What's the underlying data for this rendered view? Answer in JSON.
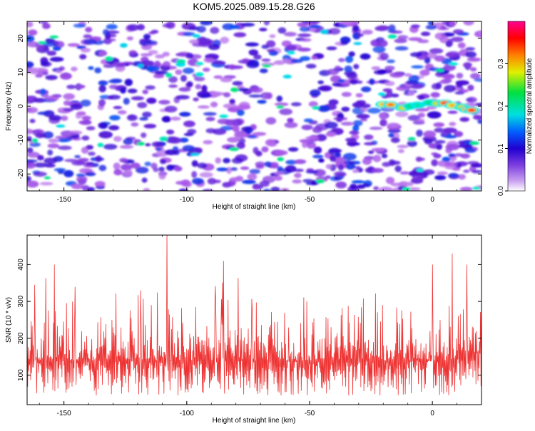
{
  "title": "KOM5.2025.089.15.28.G26",
  "colors": {
    "line": "#ee3333",
    "axis": "#000000",
    "background": "#ffffff"
  },
  "chart_data": [
    {
      "type": "heatmap",
      "xlabel": "Height of straight line (km)",
      "ylabel": "Frequency (Hz)",
      "xlim": [
        -165,
        20
      ],
      "ylim": [
        -25,
        25
      ],
      "xticks": [
        -150,
        -100,
        -50,
        0
      ],
      "xtick_labels": [
        "-150",
        "-100",
        "-50",
        "0"
      ],
      "yticks": [
        -20,
        -10,
        0,
        10,
        20
      ],
      "ytick_labels": [
        "-20",
        "-10",
        "0",
        "10",
        "20"
      ],
      "colorbar": {
        "label": "Normalized spectral amplitude",
        "range": [
          0,
          0.4
        ],
        "ticks": [
          0.0,
          0.1,
          0.2,
          0.3
        ],
        "tick_labels": [
          "0.0",
          "0.1",
          "0.2",
          "0.3"
        ],
        "colormap": [
          "#ffffff",
          "#a855e8",
          "#3000d0",
          "#0070ff",
          "#00e8e8",
          "#00e040",
          "#f0f000",
          "#ff8000",
          "#ff0000",
          "#ff0088"
        ]
      },
      "features": [
        {
          "desc_value": "strong signal near 0 Hz",
          "x_range": [
            -22,
            18
          ],
          "y": 0,
          "amplitude": 0.35
        }
      ]
    },
    {
      "type": "line",
      "xlabel": "Height of straight line (km)",
      "ylabel": "SNR (10 * v/v)",
      "xlim": [
        -165,
        20
      ],
      "ylim": [
        20,
        480
      ],
      "xticks": [
        -150,
        -100,
        -50,
        0
      ],
      "xtick_labels": [
        "-150",
        "-100",
        "-50",
        "0"
      ],
      "yticks": [
        100,
        200,
        300,
        400
      ],
      "ytick_labels": [
        "100",
        "200",
        "300",
        "400"
      ],
      "series_stats": {
        "min": 25,
        "typical": 140,
        "max": 480
      },
      "peaks": [
        {
          "x": -162,
          "y": 345
        },
        {
          "x": -154,
          "y": 400
        },
        {
          "x": -108,
          "y": 480
        },
        {
          "x": -85,
          "y": 410
        },
        {
          "x": 0,
          "y": 400
        },
        {
          "x": 8,
          "y": 430
        },
        {
          "x": 14,
          "y": 400
        }
      ]
    }
  ]
}
